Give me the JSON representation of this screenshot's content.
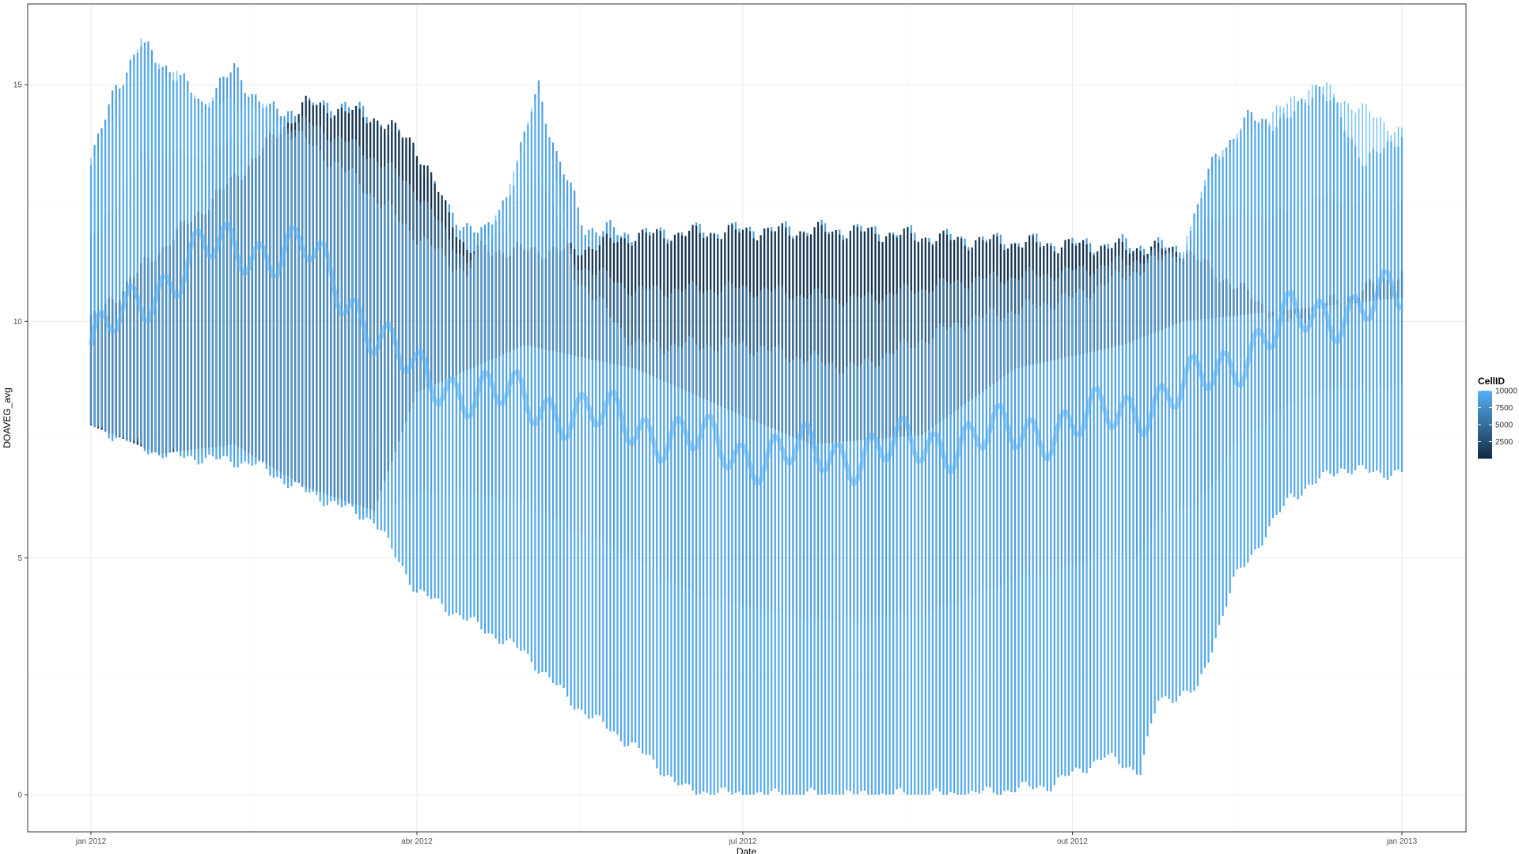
{
  "chart_data": {
    "type": "line",
    "mark": "vertical daily range segments, one per date, colored by CellID",
    "title": "",
    "xlabel": "Date",
    "ylabel": "DOAVEG_avg",
    "xlim": [
      "2012-01-01",
      "2013-01-01"
    ],
    "ylim": [
      0,
      16.2
    ],
    "x_ticks": [
      {
        "date": "2012-01-01",
        "label": "jan 2012"
      },
      {
        "date": "2012-04-01",
        "label": "abr 2012"
      },
      {
        "date": "2012-07-01",
        "label": "jul 2012"
      },
      {
        "date": "2012-10-01",
        "label": "out 2012"
      },
      {
        "date": "2013-01-01",
        "label": "jan 2013"
      }
    ],
    "y_ticks": [
      {
        "value": 0,
        "label": "0"
      },
      {
        "value": 5,
        "label": "5"
      },
      {
        "value": 10,
        "label": "10"
      },
      {
        "value": 15,
        "label": "15"
      }
    ],
    "grid": true,
    "color_scale": {
      "variable": "CellID",
      "low": "#132B43",
      "high": "#56B1F7",
      "range": [
        1,
        10000
      ]
    },
    "legend": {
      "title": "CellID",
      "placement": "right",
      "breaks": [
        {
          "value": 10000,
          "label": "10000"
        },
        {
          "value": 7500,
          "label": "7500"
        },
        {
          "value": 5000,
          "label": "5000"
        },
        {
          "value": 2500,
          "label": "2500"
        }
      ]
    },
    "series": [
      {
        "description": "upper envelope (max across cells)",
        "points": [
          {
            "date": "2012-01-01",
            "value": 13.3
          },
          {
            "date": "2012-01-08",
            "value": 15.0
          },
          {
            "date": "2012-01-15",
            "value": 15.8
          },
          {
            "date": "2012-01-22",
            "value": 15.4
          },
          {
            "date": "2012-02-01",
            "value": 14.6
          },
          {
            "date": "2012-02-10",
            "value": 15.3
          },
          {
            "date": "2012-02-20",
            "value": 14.4
          },
          {
            "date": "2012-03-01",
            "value": 14.5
          },
          {
            "date": "2012-03-10",
            "value": 14.6
          },
          {
            "date": "2012-03-20",
            "value": 14.3
          },
          {
            "date": "2012-03-31",
            "value": 13.6
          },
          {
            "date": "2012-04-10",
            "value": 12.3
          },
          {
            "date": "2012-04-20",
            "value": 11.8
          },
          {
            "date": "2012-04-28",
            "value": 13.0
          },
          {
            "date": "2012-05-05",
            "value": 15.0
          },
          {
            "date": "2012-05-10",
            "value": 13.5
          },
          {
            "date": "2012-05-18",
            "value": 12.0
          },
          {
            "date": "2012-06-01",
            "value": 11.8
          },
          {
            "date": "2012-07-01",
            "value": 11.9
          },
          {
            "date": "2012-08-01",
            "value": 11.9
          },
          {
            "date": "2012-09-01",
            "value": 11.7
          },
          {
            "date": "2012-10-01",
            "value": 11.6
          },
          {
            "date": "2012-10-20",
            "value": 11.6
          },
          {
            "date": "2012-11-01",
            "value": 11.5
          },
          {
            "date": "2012-11-10",
            "value": 13.5
          },
          {
            "date": "2012-11-20",
            "value": 14.3
          },
          {
            "date": "2012-11-30",
            "value": 14.2
          },
          {
            "date": "2012-12-08",
            "value": 15.0
          },
          {
            "date": "2012-12-15",
            "value": 14.3
          },
          {
            "date": "2012-12-22",
            "value": 13.3
          },
          {
            "date": "2013-01-01",
            "value": 14.0
          }
        ]
      },
      {
        "description": "upper band of high CellID (light) cells",
        "points": [
          {
            "date": "2012-01-01",
            "value": 13.3
          },
          {
            "date": "2012-01-15",
            "value": 15.8
          },
          {
            "date": "2012-02-01",
            "value": 14.6
          },
          {
            "date": "2012-02-15",
            "value": 14.6
          },
          {
            "date": "2012-03-01",
            "value": 13.8
          },
          {
            "date": "2012-03-15",
            "value": 13.0
          },
          {
            "date": "2012-04-01",
            "value": 11.8
          },
          {
            "date": "2012-04-15",
            "value": 11.0
          },
          {
            "date": "2012-04-28",
            "value": 13.0
          },
          {
            "date": "2012-05-05",
            "value": 15.0
          },
          {
            "date": "2012-05-15",
            "value": 11.0
          },
          {
            "date": "2012-06-01",
            "value": 9.5
          },
          {
            "date": "2012-07-01",
            "value": 9.5
          },
          {
            "date": "2012-08-01",
            "value": 9.0
          },
          {
            "date": "2012-09-01",
            "value": 10.0
          },
          {
            "date": "2012-10-01",
            "value": 10.5
          },
          {
            "date": "2012-11-01",
            "value": 11.5
          },
          {
            "date": "2012-11-10",
            "value": 13.5
          },
          {
            "date": "2012-12-08",
            "value": 15.0
          },
          {
            "date": "2013-01-01",
            "value": 14.0
          }
        ]
      },
      {
        "description": "upper band of low CellID (dark) cells",
        "points": [
          {
            "date": "2012-01-01",
            "value": 10.0
          },
          {
            "date": "2012-01-20",
            "value": 11.5
          },
          {
            "date": "2012-02-10",
            "value": 13.0
          },
          {
            "date": "2012-03-01",
            "value": 14.6
          },
          {
            "date": "2012-03-20",
            "value": 14.3
          },
          {
            "date": "2012-03-31",
            "value": 13.8
          },
          {
            "date": "2012-04-15",
            "value": 11.5
          },
          {
            "date": "2012-05-15",
            "value": 11.5
          },
          {
            "date": "2012-06-01",
            "value": 11.8
          },
          {
            "date": "2012-07-01",
            "value": 11.9
          },
          {
            "date": "2012-08-01",
            "value": 11.9
          },
          {
            "date": "2012-09-01",
            "value": 11.7
          },
          {
            "date": "2012-10-01",
            "value": 11.6
          },
          {
            "date": "2012-11-01",
            "value": 11.5
          },
          {
            "date": "2012-11-30",
            "value": 10.0
          },
          {
            "date": "2013-01-01",
            "value": 11.0
          }
        ]
      },
      {
        "description": "lower band of low CellID (dark) cells",
        "points": [
          {
            "date": "2012-01-01",
            "value": 7.8
          },
          {
            "date": "2012-01-20",
            "value": 7.2
          },
          {
            "date": "2012-02-10",
            "value": 7.4
          },
          {
            "date": "2012-03-01",
            "value": 6.5
          },
          {
            "date": "2012-03-20",
            "value": 6.0
          },
          {
            "date": "2012-04-01",
            "value": 8.5
          },
          {
            "date": "2012-05-01",
            "value": 9.5
          },
          {
            "date": "2012-06-01",
            "value": 9.0
          },
          {
            "date": "2012-07-01",
            "value": 8.0
          },
          {
            "date": "2012-07-20",
            "value": 7.4
          },
          {
            "date": "2012-08-20",
            "value": 7.6
          },
          {
            "date": "2012-09-15",
            "value": 9.0
          },
          {
            "date": "2012-10-15",
            "value": 9.5
          },
          {
            "date": "2012-11-01",
            "value": 10.0
          },
          {
            "date": "2013-01-01",
            "value": 10.5
          }
        ]
      },
      {
        "description": "lower band of high CellID (light) cells",
        "points": [
          {
            "date": "2012-01-01",
            "value": 9.5
          },
          {
            "date": "2012-02-01",
            "value": 11.5
          },
          {
            "date": "2012-03-01",
            "value": 11.5
          },
          {
            "date": "2012-04-01",
            "value": 8.8
          },
          {
            "date": "2012-05-01",
            "value": 8.3
          },
          {
            "date": "2012-06-01",
            "value": 7.8
          },
          {
            "date": "2012-07-01",
            "value": 7.2
          },
          {
            "date": "2012-08-01",
            "value": 7.2
          },
          {
            "date": "2012-09-01",
            "value": 7.5
          },
          {
            "date": "2012-10-01",
            "value": 7.8
          },
          {
            "date": "2012-11-01",
            "value": 8.5
          },
          {
            "date": "2012-12-01",
            "value": 10.0
          },
          {
            "date": "2013-01-01",
            "value": 10.5
          }
        ]
      },
      {
        "description": "lower envelope (min across cells)",
        "points": [
          {
            "date": "2012-01-01",
            "value": 7.8
          },
          {
            "date": "2012-01-20",
            "value": 7.2
          },
          {
            "date": "2012-02-15",
            "value": 7.0
          },
          {
            "date": "2012-03-01",
            "value": 6.4
          },
          {
            "date": "2012-03-20",
            "value": 5.8
          },
          {
            "date": "2012-04-01",
            "value": 4.3
          },
          {
            "date": "2012-04-15",
            "value": 3.7
          },
          {
            "date": "2012-05-01",
            "value": 3.0
          },
          {
            "date": "2012-05-15",
            "value": 1.9
          },
          {
            "date": "2012-06-01",
            "value": 1.0
          },
          {
            "date": "2012-06-15",
            "value": 0.1
          },
          {
            "date": "2012-07-01",
            "value": 0.0
          },
          {
            "date": "2012-08-01",
            "value": 0.0
          },
          {
            "date": "2012-09-01",
            "value": 0.0
          },
          {
            "date": "2012-09-25",
            "value": 0.2
          },
          {
            "date": "2012-10-10",
            "value": 0.8
          },
          {
            "date": "2012-10-20",
            "value": 0.5
          },
          {
            "date": "2012-10-25",
            "value": 2.0
          },
          {
            "date": "2012-11-05",
            "value": 2.2
          },
          {
            "date": "2012-11-15",
            "value": 4.5
          },
          {
            "date": "2012-12-01",
            "value": 6.3
          },
          {
            "date": "2012-12-15",
            "value": 6.9
          },
          {
            "date": "2012-12-25",
            "value": 6.8
          },
          {
            "date": "2013-01-01",
            "value": 6.8
          }
        ]
      }
    ]
  }
}
